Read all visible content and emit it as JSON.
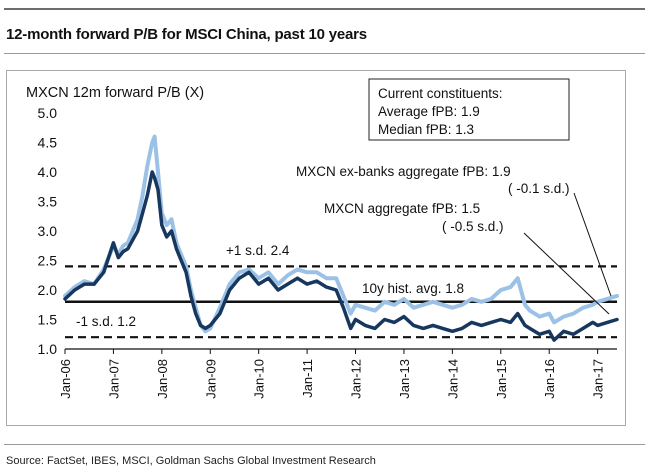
{
  "title": "12-month forward P/B for MSCI China, past 10 years",
  "source": "Source: FactSet, IBES, MSCI, Goldman Sachs Global Investment Research",
  "chart_data": {
    "type": "line",
    "ylabel": "MXCN 12m forward  P/B (X)",
    "ylim": [
      1.0,
      5.0
    ],
    "y_ticks": [
      "1.0",
      "1.5",
      "2.0",
      "2.5",
      "3.0",
      "3.5",
      "4.0",
      "4.5",
      "5.0"
    ],
    "x_ticks": [
      "Jan-06",
      "Jan-07",
      "Jan-08",
      "Jan-09",
      "Jan-10",
      "Jan-11",
      "Jan-12",
      "Jan-13",
      "Jan-14",
      "Jan-15",
      "Jan-16",
      "Jan-17"
    ],
    "xlim": [
      2006.0,
      2017.4
    ],
    "colors": {
      "aggregate": "#17375e",
      "ex_banks": "#9bc2e6",
      "reference": "#111111"
    },
    "series": [
      {
        "name": "MXCN aggregate fPB",
        "x": [
          2006.0,
          2006.2,
          2006.4,
          2006.6,
          2006.8,
          2007.0,
          2007.1,
          2007.2,
          2007.3,
          2007.5,
          2007.6,
          2007.7,
          2007.8,
          2007.85,
          2007.92,
          2008.0,
          2008.1,
          2008.2,
          2008.3,
          2008.4,
          2008.5,
          2008.6,
          2008.7,
          2008.8,
          2008.9,
          2009.0,
          2009.2,
          2009.4,
          2009.6,
          2009.8,
          2010.0,
          2010.2,
          2010.4,
          2010.6,
          2010.8,
          2011.0,
          2011.2,
          2011.4,
          2011.6,
          2011.75,
          2011.9,
          2012.0,
          2012.2,
          2012.4,
          2012.6,
          2012.8,
          2013.0,
          2013.2,
          2013.4,
          2013.6,
          2013.8,
          2014.0,
          2014.2,
          2014.4,
          2014.6,
          2014.8,
          2015.0,
          2015.2,
          2015.35,
          2015.5,
          2015.6,
          2015.8,
          2016.0,
          2016.1,
          2016.3,
          2016.5,
          2016.7,
          2016.9,
          2017.0,
          2017.2,
          2017.4
        ],
        "values": [
          1.85,
          2.0,
          2.1,
          2.1,
          2.3,
          2.8,
          2.55,
          2.65,
          2.7,
          3.0,
          3.3,
          3.6,
          4.0,
          3.9,
          3.7,
          3.1,
          2.9,
          3.0,
          2.7,
          2.5,
          2.3,
          1.9,
          1.6,
          1.4,
          1.35,
          1.4,
          1.6,
          2.0,
          2.2,
          2.3,
          2.1,
          2.2,
          2.0,
          2.1,
          2.2,
          2.1,
          2.15,
          2.05,
          2.0,
          1.7,
          1.35,
          1.5,
          1.4,
          1.35,
          1.5,
          1.45,
          1.55,
          1.4,
          1.35,
          1.4,
          1.35,
          1.3,
          1.35,
          1.45,
          1.4,
          1.45,
          1.5,
          1.45,
          1.6,
          1.4,
          1.35,
          1.25,
          1.3,
          1.15,
          1.3,
          1.25,
          1.35,
          1.45,
          1.4,
          1.45,
          1.5
        ]
      },
      {
        "name": "MXCN ex-banks aggregate fPB",
        "x": [
          2006.0,
          2006.2,
          2006.4,
          2006.6,
          2006.8,
          2007.0,
          2007.1,
          2007.2,
          2007.3,
          2007.5,
          2007.6,
          2007.7,
          2007.8,
          2007.85,
          2007.92,
          2008.0,
          2008.1,
          2008.2,
          2008.3,
          2008.4,
          2008.5,
          2008.6,
          2008.7,
          2008.8,
          2008.9,
          2009.0,
          2009.2,
          2009.4,
          2009.6,
          2009.8,
          2010.0,
          2010.2,
          2010.4,
          2010.6,
          2010.8,
          2011.0,
          2011.2,
          2011.4,
          2011.6,
          2011.75,
          2011.9,
          2012.0,
          2012.2,
          2012.4,
          2012.6,
          2012.8,
          2013.0,
          2013.2,
          2013.4,
          2013.6,
          2013.8,
          2014.0,
          2014.2,
          2014.4,
          2014.6,
          2014.8,
          2015.0,
          2015.2,
          2015.35,
          2015.5,
          2015.6,
          2015.8,
          2016.0,
          2016.1,
          2016.3,
          2016.5,
          2016.7,
          2016.9,
          2017.0,
          2017.2,
          2017.4
        ],
        "values": [
          1.9,
          2.05,
          2.15,
          2.1,
          2.35,
          2.75,
          2.6,
          2.75,
          2.8,
          3.2,
          3.6,
          4.1,
          4.5,
          4.6,
          4.0,
          3.3,
          3.1,
          3.2,
          2.8,
          2.6,
          2.4,
          2.0,
          1.7,
          1.4,
          1.3,
          1.35,
          1.7,
          2.1,
          2.3,
          2.35,
          2.2,
          2.3,
          2.1,
          2.25,
          2.35,
          2.3,
          2.3,
          2.2,
          2.2,
          1.9,
          1.6,
          1.75,
          1.7,
          1.65,
          1.8,
          1.75,
          1.85,
          1.7,
          1.75,
          1.8,
          1.75,
          1.7,
          1.75,
          1.85,
          1.8,
          1.85,
          2.0,
          2.05,
          2.2,
          1.75,
          1.65,
          1.55,
          1.6,
          1.45,
          1.55,
          1.6,
          1.7,
          1.75,
          1.8,
          1.85,
          1.9
        ]
      }
    ],
    "reference_lines": [
      {
        "name": "+1 s.d.",
        "value": 2.4,
        "style": "dashed",
        "label": "+1 s.d.  2.4"
      },
      {
        "name": "10y hist. avg.",
        "value": 1.8,
        "style": "solid",
        "label": "10y hist. avg.   1.8"
      },
      {
        "name": "-1 s.d.",
        "value": 1.2,
        "style": "dashed",
        "label": "-1 s.d.  1.2"
      }
    ],
    "info_box": {
      "heading": "Current constituents:",
      "avg_label": "Average fPB:  1.9",
      "median_label": "Median fPB:   1.3"
    },
    "annotations": {
      "ex_banks": {
        "text": "MXCN ex-banks aggregate fPB:  1.9",
        "sd": "( -0.1 s.d.)"
      },
      "aggregate": {
        "text": "MXCN aggregate fPB:  1.5",
        "sd": "( -0.5 s.d.)"
      }
    }
  }
}
